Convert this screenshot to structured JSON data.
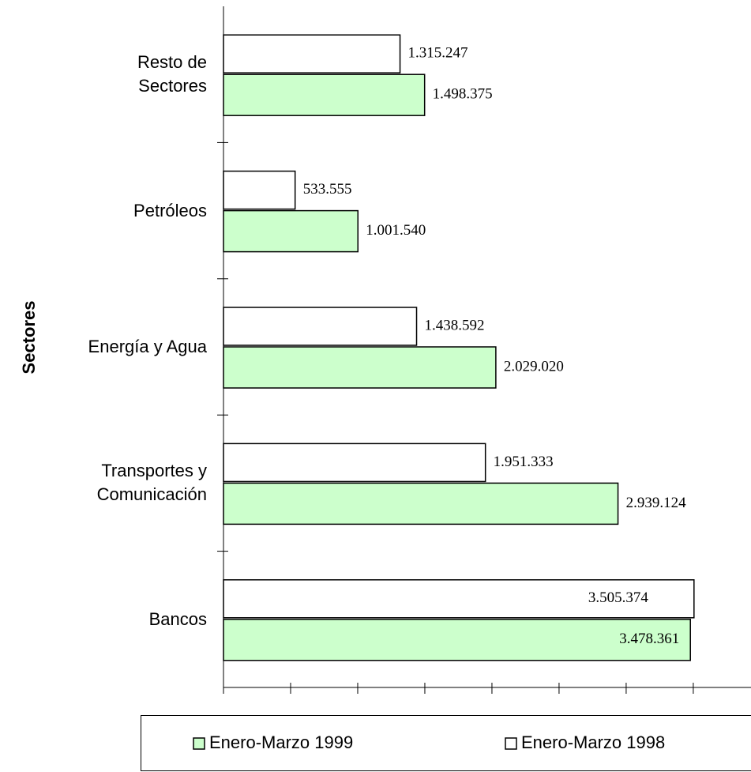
{
  "chart_data": {
    "type": "hbar",
    "y_label": "Sectores",
    "categories": [
      "Bancos",
      "Transportes y\nComunicación",
      "Energía y Agua",
      "Petróleos",
      "Resto de\nSectores"
    ],
    "series": [
      {
        "name": "Enero-Marzo 1999",
        "color": "#ccffcc",
        "values": [
          3478361,
          2939124,
          2029020,
          1001540,
          1498375
        ],
        "value_labels": [
          "3.478.361",
          "2.939.124",
          "2.029.020",
          "1.001.540",
          "1.498.375"
        ]
      },
      {
        "name": "Enero-Marzo 1998",
        "color": "#ffffff",
        "values": [
          3505374,
          1951333,
          1438592,
          533555,
          1315247
        ],
        "value_labels": [
          "3.505.374",
          "1.951.333",
          "1.438.592",
          "533.555",
          "1.315.247"
        ]
      }
    ],
    "xlim": [
      0,
      3930000
    ],
    "xticks": [
      0,
      500000,
      1000000,
      1500000,
      2000000,
      2500000,
      3000000,
      3500000
    ],
    "legend": "bottom"
  }
}
